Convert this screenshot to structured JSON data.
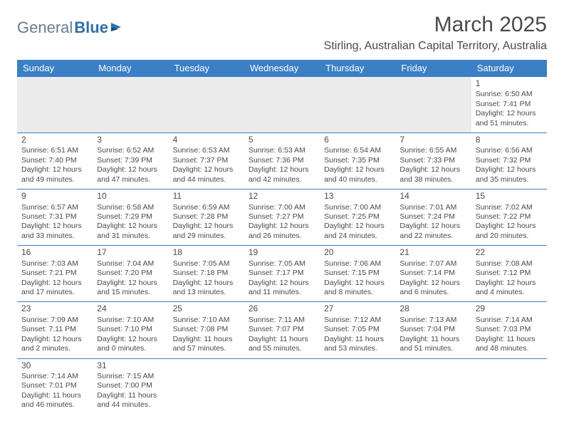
{
  "logo": {
    "part1": "General",
    "part2": "Blue"
  },
  "title": "March 2025",
  "location": "Stirling, Australian Capital Territory, Australia",
  "header_color": "#3b7fc4",
  "day_headers": [
    "Sunday",
    "Monday",
    "Tuesday",
    "Wednesday",
    "Thursday",
    "Friday",
    "Saturday"
  ],
  "weeks": [
    [
      null,
      null,
      null,
      null,
      null,
      null,
      {
        "n": "1",
        "sr": "Sunrise: 6:50 AM",
        "ss": "Sunset: 7:41 PM",
        "dl1": "Daylight: 12 hours",
        "dl2": "and 51 minutes."
      }
    ],
    [
      {
        "n": "2",
        "sr": "Sunrise: 6:51 AM",
        "ss": "Sunset: 7:40 PM",
        "dl1": "Daylight: 12 hours",
        "dl2": "and 49 minutes."
      },
      {
        "n": "3",
        "sr": "Sunrise: 6:52 AM",
        "ss": "Sunset: 7:39 PM",
        "dl1": "Daylight: 12 hours",
        "dl2": "and 47 minutes."
      },
      {
        "n": "4",
        "sr": "Sunrise: 6:53 AM",
        "ss": "Sunset: 7:37 PM",
        "dl1": "Daylight: 12 hours",
        "dl2": "and 44 minutes."
      },
      {
        "n": "5",
        "sr": "Sunrise: 6:53 AM",
        "ss": "Sunset: 7:36 PM",
        "dl1": "Daylight: 12 hours",
        "dl2": "and 42 minutes."
      },
      {
        "n": "6",
        "sr": "Sunrise: 6:54 AM",
        "ss": "Sunset: 7:35 PM",
        "dl1": "Daylight: 12 hours",
        "dl2": "and 40 minutes."
      },
      {
        "n": "7",
        "sr": "Sunrise: 6:55 AM",
        "ss": "Sunset: 7:33 PM",
        "dl1": "Daylight: 12 hours",
        "dl2": "and 38 minutes."
      },
      {
        "n": "8",
        "sr": "Sunrise: 6:56 AM",
        "ss": "Sunset: 7:32 PM",
        "dl1": "Daylight: 12 hours",
        "dl2": "and 35 minutes."
      }
    ],
    [
      {
        "n": "9",
        "sr": "Sunrise: 6:57 AM",
        "ss": "Sunset: 7:31 PM",
        "dl1": "Daylight: 12 hours",
        "dl2": "and 33 minutes."
      },
      {
        "n": "10",
        "sr": "Sunrise: 6:58 AM",
        "ss": "Sunset: 7:29 PM",
        "dl1": "Daylight: 12 hours",
        "dl2": "and 31 minutes."
      },
      {
        "n": "11",
        "sr": "Sunrise: 6:59 AM",
        "ss": "Sunset: 7:28 PM",
        "dl1": "Daylight: 12 hours",
        "dl2": "and 29 minutes."
      },
      {
        "n": "12",
        "sr": "Sunrise: 7:00 AM",
        "ss": "Sunset: 7:27 PM",
        "dl1": "Daylight: 12 hours",
        "dl2": "and 26 minutes."
      },
      {
        "n": "13",
        "sr": "Sunrise: 7:00 AM",
        "ss": "Sunset: 7:25 PM",
        "dl1": "Daylight: 12 hours",
        "dl2": "and 24 minutes."
      },
      {
        "n": "14",
        "sr": "Sunrise: 7:01 AM",
        "ss": "Sunset: 7:24 PM",
        "dl1": "Daylight: 12 hours",
        "dl2": "and 22 minutes."
      },
      {
        "n": "15",
        "sr": "Sunrise: 7:02 AM",
        "ss": "Sunset: 7:22 PM",
        "dl1": "Daylight: 12 hours",
        "dl2": "and 20 minutes."
      }
    ],
    [
      {
        "n": "16",
        "sr": "Sunrise: 7:03 AM",
        "ss": "Sunset: 7:21 PM",
        "dl1": "Daylight: 12 hours",
        "dl2": "and 17 minutes."
      },
      {
        "n": "17",
        "sr": "Sunrise: 7:04 AM",
        "ss": "Sunset: 7:20 PM",
        "dl1": "Daylight: 12 hours",
        "dl2": "and 15 minutes."
      },
      {
        "n": "18",
        "sr": "Sunrise: 7:05 AM",
        "ss": "Sunset: 7:18 PM",
        "dl1": "Daylight: 12 hours",
        "dl2": "and 13 minutes."
      },
      {
        "n": "19",
        "sr": "Sunrise: 7:05 AM",
        "ss": "Sunset: 7:17 PM",
        "dl1": "Daylight: 12 hours",
        "dl2": "and 11 minutes."
      },
      {
        "n": "20",
        "sr": "Sunrise: 7:06 AM",
        "ss": "Sunset: 7:15 PM",
        "dl1": "Daylight: 12 hours",
        "dl2": "and 8 minutes."
      },
      {
        "n": "21",
        "sr": "Sunrise: 7:07 AM",
        "ss": "Sunset: 7:14 PM",
        "dl1": "Daylight: 12 hours",
        "dl2": "and 6 minutes."
      },
      {
        "n": "22",
        "sr": "Sunrise: 7:08 AM",
        "ss": "Sunset: 7:12 PM",
        "dl1": "Daylight: 12 hours",
        "dl2": "and 4 minutes."
      }
    ],
    [
      {
        "n": "23",
        "sr": "Sunrise: 7:09 AM",
        "ss": "Sunset: 7:11 PM",
        "dl1": "Daylight: 12 hours",
        "dl2": "and 2 minutes."
      },
      {
        "n": "24",
        "sr": "Sunrise: 7:10 AM",
        "ss": "Sunset: 7:10 PM",
        "dl1": "Daylight: 12 hours",
        "dl2": "and 0 minutes."
      },
      {
        "n": "25",
        "sr": "Sunrise: 7:10 AM",
        "ss": "Sunset: 7:08 PM",
        "dl1": "Daylight: 11 hours",
        "dl2": "and 57 minutes."
      },
      {
        "n": "26",
        "sr": "Sunrise: 7:11 AM",
        "ss": "Sunset: 7:07 PM",
        "dl1": "Daylight: 11 hours",
        "dl2": "and 55 minutes."
      },
      {
        "n": "27",
        "sr": "Sunrise: 7:12 AM",
        "ss": "Sunset: 7:05 PM",
        "dl1": "Daylight: 11 hours",
        "dl2": "and 53 minutes."
      },
      {
        "n": "28",
        "sr": "Sunrise: 7:13 AM",
        "ss": "Sunset: 7:04 PM",
        "dl1": "Daylight: 11 hours",
        "dl2": "and 51 minutes."
      },
      {
        "n": "29",
        "sr": "Sunrise: 7:14 AM",
        "ss": "Sunset: 7:03 PM",
        "dl1": "Daylight: 11 hours",
        "dl2": "and 48 minutes."
      }
    ],
    [
      {
        "n": "30",
        "sr": "Sunrise: 7:14 AM",
        "ss": "Sunset: 7:01 PM",
        "dl1": "Daylight: 11 hours",
        "dl2": "and 46 minutes."
      },
      {
        "n": "31",
        "sr": "Sunrise: 7:15 AM",
        "ss": "Sunset: 7:00 PM",
        "dl1": "Daylight: 11 hours",
        "dl2": "and 44 minutes."
      },
      null,
      null,
      null,
      null,
      null
    ]
  ]
}
